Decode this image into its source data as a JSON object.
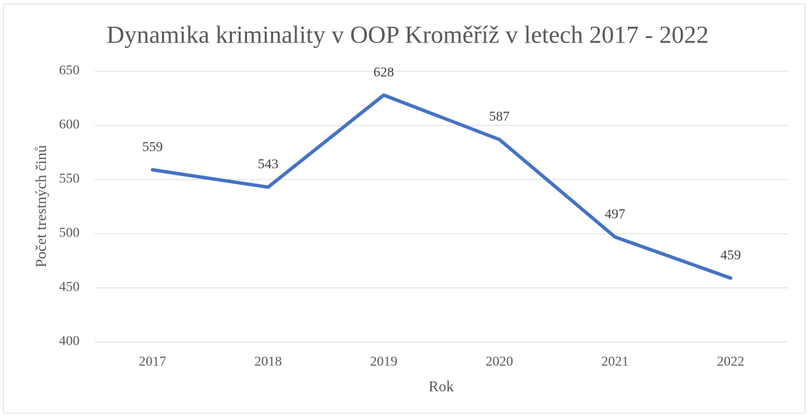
{
  "chart_data": {
    "type": "line",
    "title": "Dynamika kriminality v OOP Kroměříž v letech 2017 - 2022",
    "x_label": "Rok",
    "y_label": "Počet trestných činů",
    "categories": [
      "2017",
      "2018",
      "2019",
      "2020",
      "2021",
      "2022"
    ],
    "values": [
      559,
      543,
      628,
      587,
      497,
      459
    ],
    "color": "#4472c4",
    "ylim": [
      400,
      650
    ],
    "yticks": [
      400,
      450,
      500,
      550,
      600,
      650
    ],
    "grid": true,
    "data_labels": true
  }
}
